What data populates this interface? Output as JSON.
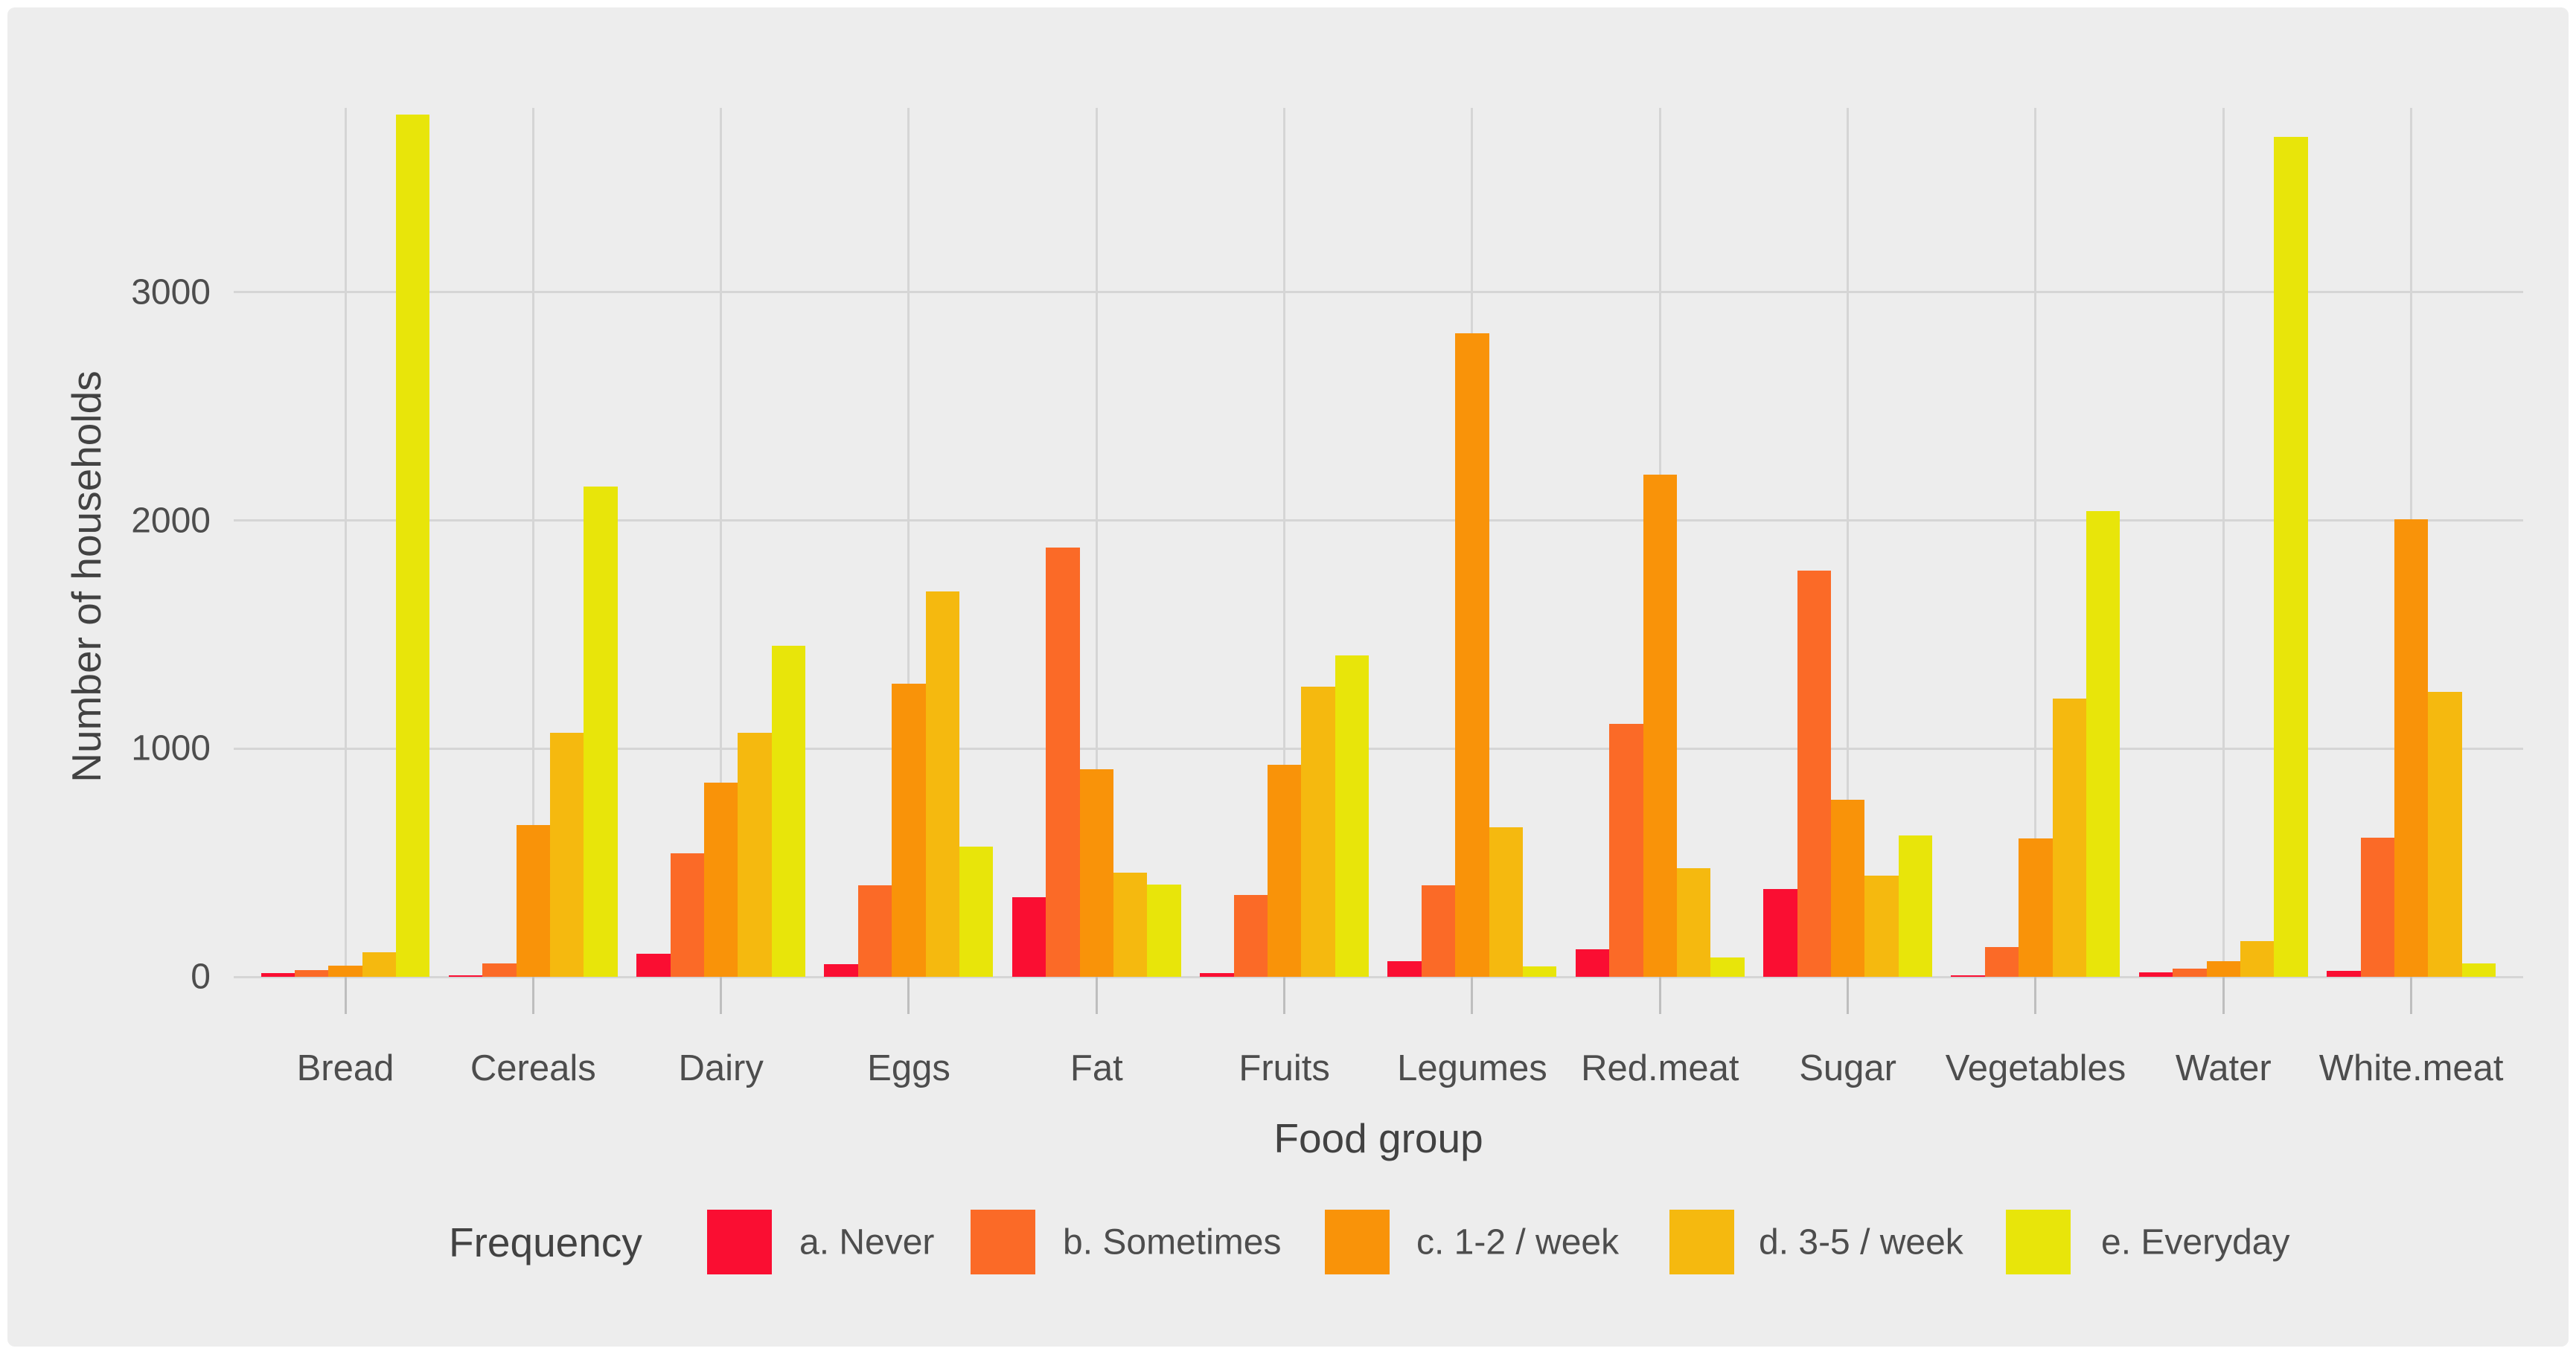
{
  "chart_data": {
    "type": "bar",
    "subtype": "grouped-vertical",
    "title": "",
    "xlabel": "Food group",
    "ylabel": "Number of households",
    "ylim": [
      0,
      3808
    ],
    "yticks": [
      0,
      1000,
      2000,
      3000
    ],
    "grid": "horizontal major gridlines at 1000-intervals plus one vertical gridline per category; no minor gridlines",
    "legend_title": "Frequency",
    "legend_position": "bottom",
    "categories": [
      "Bread",
      "Cereals",
      "Dairy",
      "Eggs",
      "Fat",
      "Fruits",
      "Legumes",
      "Red.meat",
      "Sugar",
      "Vegetables",
      "Water",
      "White.meat"
    ],
    "series": [
      {
        "name": "a. Never",
        "color": "#FA0E32",
        "values": [
          15,
          8,
          100,
          55,
          350,
          15,
          70,
          120,
          385,
          5,
          20,
          25
        ]
      },
      {
        "name": "b. Sometimes",
        "color": "#FB6A27",
        "values": [
          28,
          60,
          540,
          400,
          1880,
          360,
          400,
          1110,
          1780,
          130,
          35,
          610
        ]
      },
      {
        "name": "c. 1-2 / week",
        "color": "#F99309",
        "values": [
          48,
          665,
          850,
          1285,
          910,
          930,
          2820,
          2200,
          775,
          605,
          70,
          2005
        ]
      },
      {
        "name": "d. 3-5 / week",
        "color": "#F5B90F",
        "values": [
          108,
          1070,
          1070,
          1690,
          455,
          1270,
          655,
          475,
          445,
          1220,
          155,
          1250
        ]
      },
      {
        "name": "e. Everyday",
        "color": "#E8E50A",
        "values": [
          3780,
          2150,
          1450,
          570,
          405,
          1410,
          45,
          85,
          620,
          2040,
          3680,
          60
        ]
      }
    ],
    "colors": {
      "panel_background": "#EDEDED",
      "gridline": "#D5D5D5",
      "tick_mark": "#BEBEBE",
      "tick_text": "#4D4D4D",
      "title_text": "#424242"
    }
  }
}
